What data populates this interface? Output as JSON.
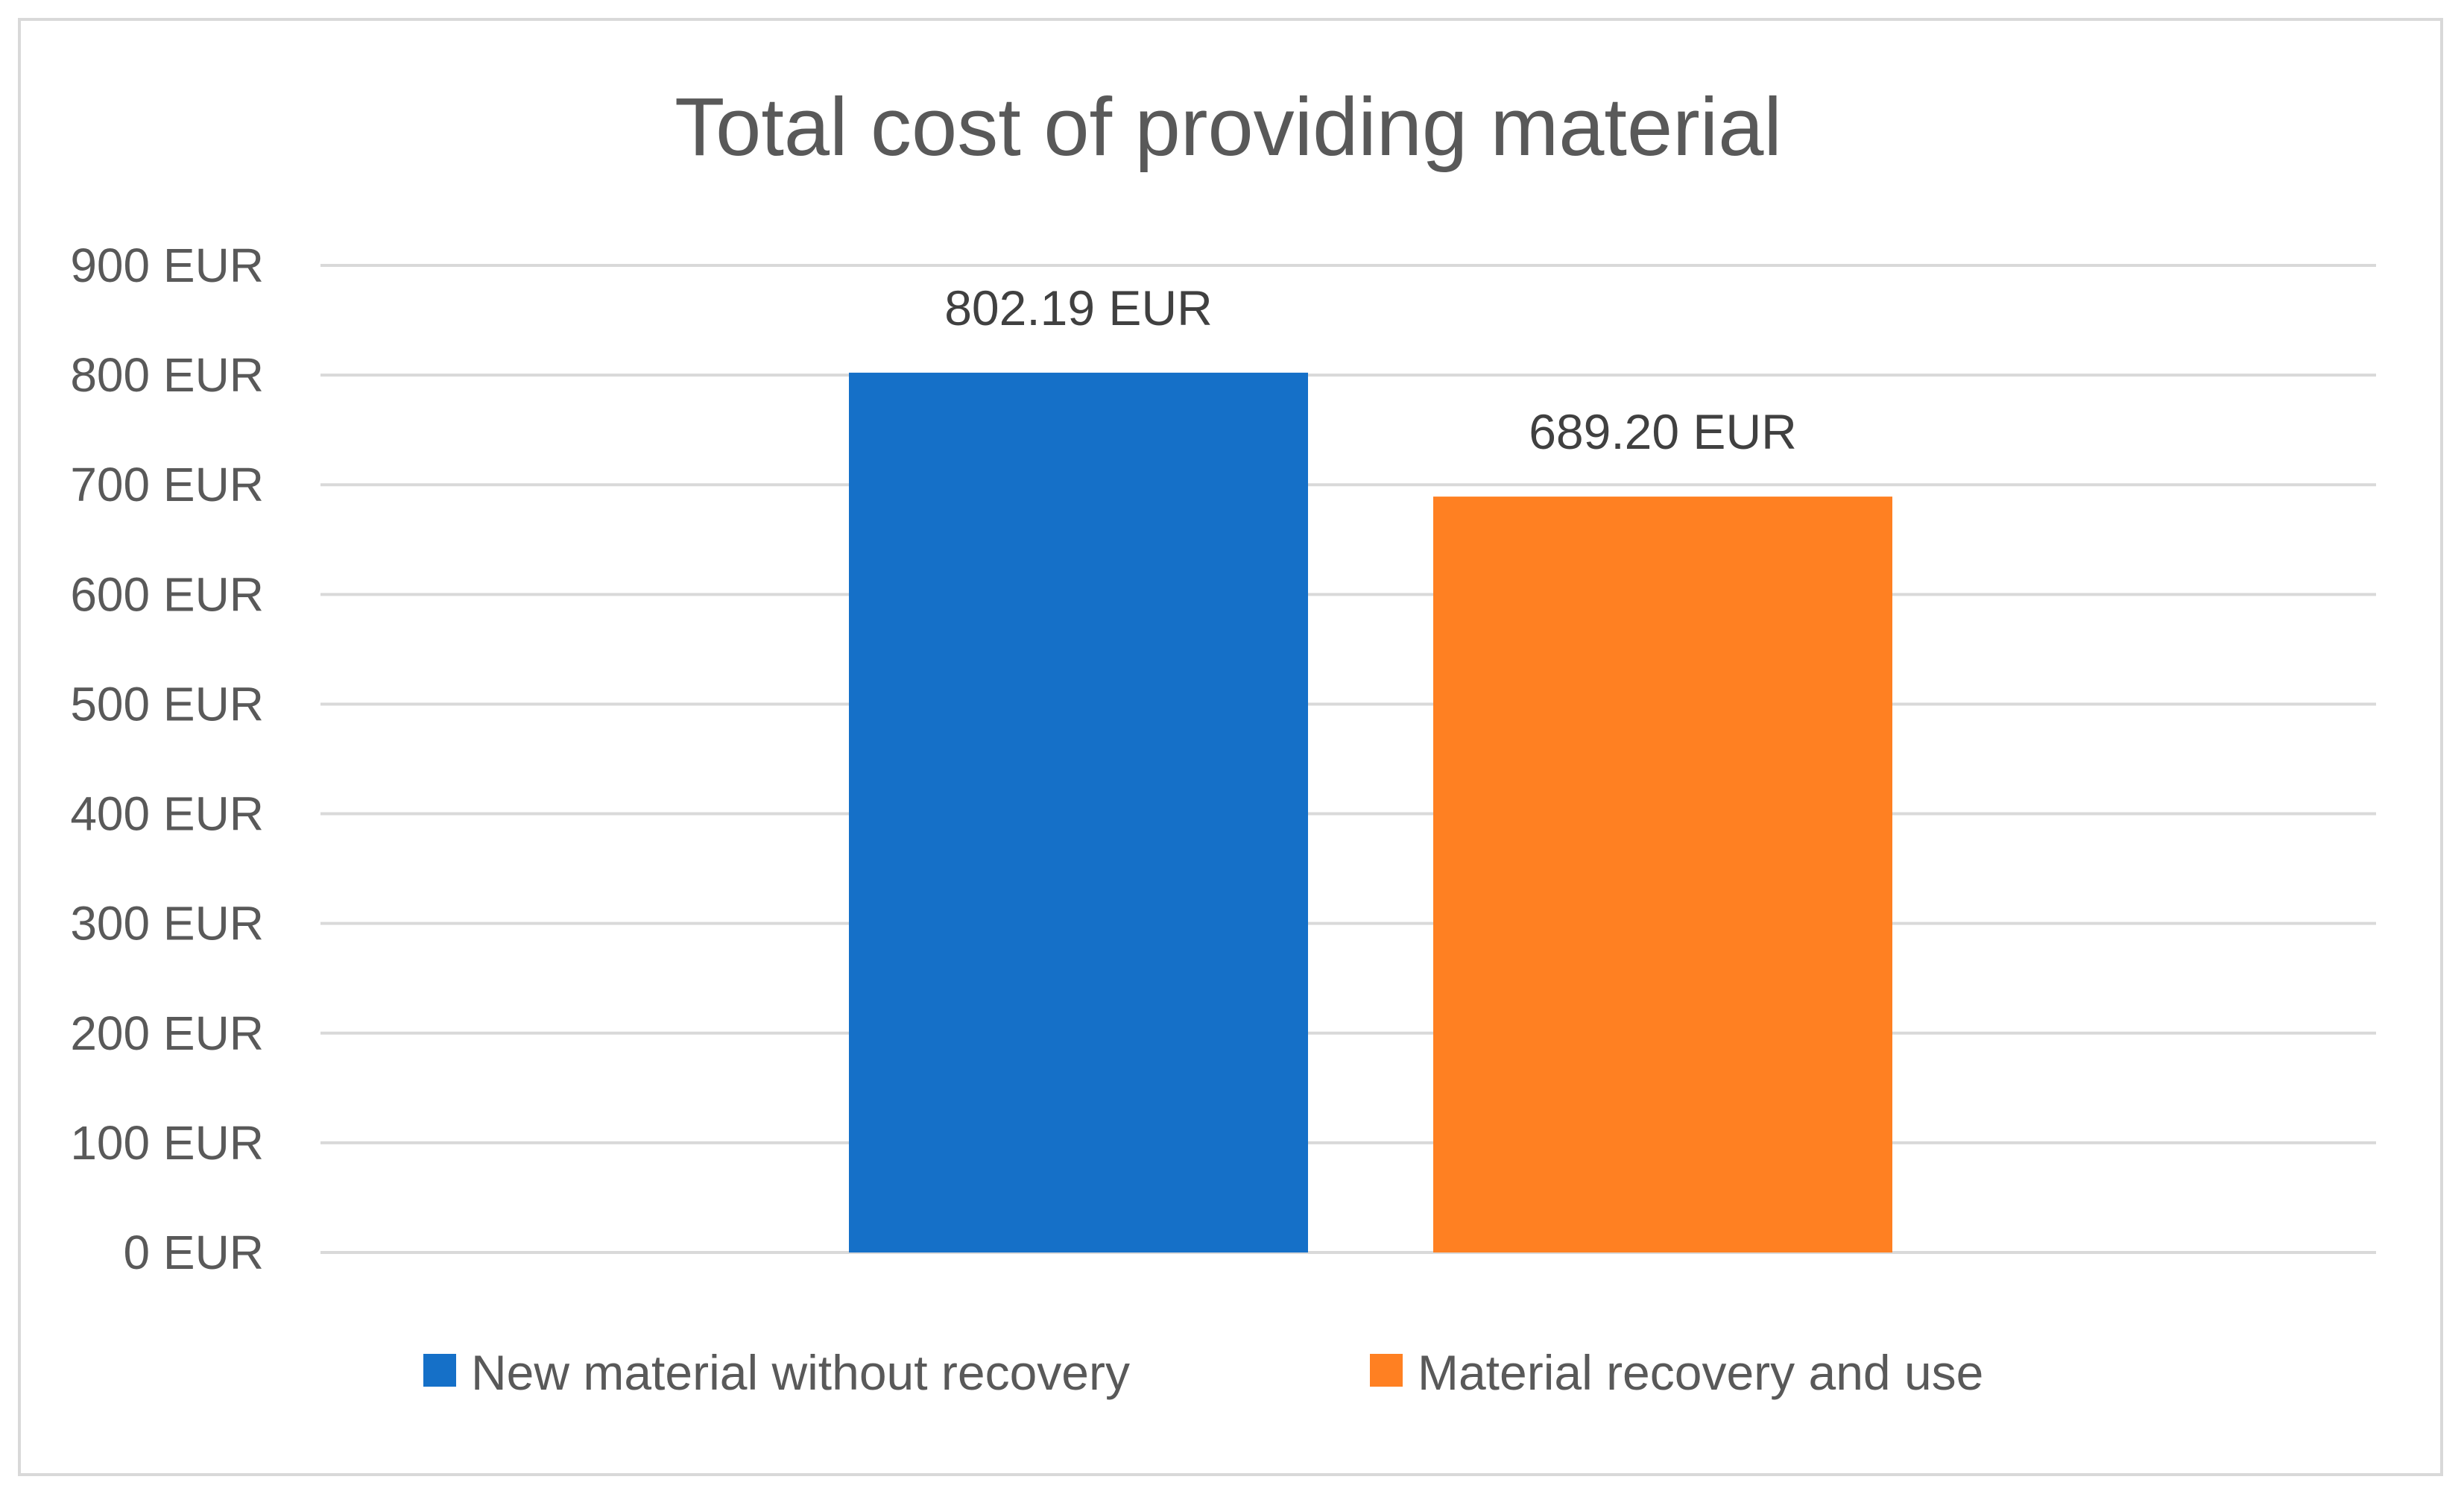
{
  "chart_data": {
    "type": "bar",
    "title": "Total cost of providing material",
    "xlabel": "",
    "ylabel": "",
    "unit_suffix": " EUR",
    "ylim": [
      0,
      900
    ],
    "yticks": [
      0,
      100,
      200,
      300,
      400,
      500,
      600,
      700,
      800,
      900
    ],
    "ytick_labels": [
      "0 EUR",
      "100 EUR",
      "200 EUR",
      "300 EUR",
      "400 EUR",
      "500 EUR",
      "600 EUR",
      "700 EUR",
      "800 EUR",
      "900 EUR"
    ],
    "grid": true,
    "legend_position": "bottom",
    "series": [
      {
        "name": "New material without recovery",
        "values": [
          802.19
        ],
        "data_labels": [
          "802.19 EUR"
        ],
        "color": "#1570c8"
      },
      {
        "name": "Material recovery and use",
        "values": [
          689.2
        ],
        "data_labels": [
          "689.20 EUR"
        ],
        "color": "#ff8022"
      }
    ]
  }
}
